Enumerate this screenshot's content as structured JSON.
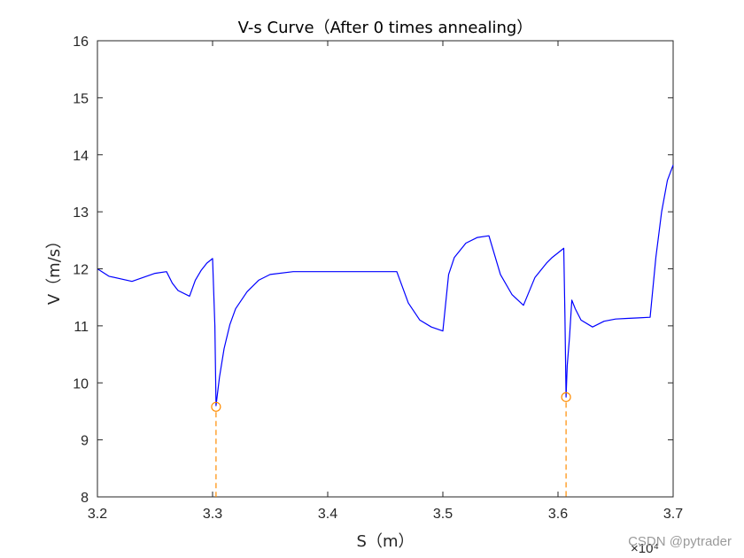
{
  "chart_data": {
    "type": "line",
    "title": "V-s Curve（After 0 times annealing）",
    "xlabel": "S（m）",
    "ylabel": "V（m/s）",
    "xlim": [
      32000,
      37000
    ],
    "ylim": [
      8,
      16
    ],
    "x_tick_labels": [
      "3.2",
      "3.3",
      "3.4",
      "3.5",
      "3.6",
      "3.7"
    ],
    "x_ticks": [
      32000,
      33000,
      34000,
      35000,
      36000,
      37000
    ],
    "y_ticks": [
      8,
      9,
      10,
      11,
      12,
      13,
      14,
      15,
      16
    ],
    "x_exponent_label": "×10⁴",
    "grid": false,
    "series": [
      {
        "color": "#0000ff",
        "x": [
          32000,
          32100,
          32300,
          32500,
          32600,
          32650,
          32700,
          32800,
          32850,
          32900,
          32950,
          33000,
          33020,
          33030,
          33060,
          33100,
          33150,
          33200,
          33300,
          33400,
          33500,
          33700,
          34000,
          34400,
          34600,
          34700,
          34800,
          34900,
          35000,
          35050,
          35100,
          35200,
          35300,
          35400,
          35500,
          35600,
          35700,
          35800,
          35900,
          35950,
          36000,
          36050,
          36060,
          36070,
          36080,
          36100,
          36120,
          36150,
          36200,
          36300,
          36400,
          36500,
          36600,
          36700,
          36800,
          36850,
          36900,
          36950,
          37000
        ],
        "y": [
          12.0,
          11.87,
          11.78,
          11.92,
          11.95,
          11.75,
          11.62,
          11.52,
          11.8,
          11.97,
          12.1,
          12.18,
          11.0,
          9.6,
          10.1,
          10.6,
          11.02,
          11.3,
          11.6,
          11.8,
          11.9,
          11.95,
          11.95,
          11.95,
          11.95,
          11.4,
          11.1,
          10.98,
          10.91,
          11.9,
          12.2,
          12.45,
          12.55,
          12.58,
          11.9,
          11.55,
          11.36,
          11.85,
          12.1,
          12.2,
          12.28,
          12.36,
          11.2,
          9.75,
          10.3,
          10.8,
          11.45,
          11.3,
          11.1,
          10.98,
          11.08,
          11.12,
          11.13,
          11.14,
          11.15,
          12.2,
          13.0,
          13.55,
          13.82
        ]
      }
    ],
    "markers": [
      {
        "x": 33030,
        "y": 9.58,
        "color": "#ff8c00",
        "style": "circle"
      },
      {
        "x": 36070,
        "y": 9.75,
        "color": "#ff8c00",
        "style": "circle"
      }
    ],
    "drop_lines": [
      {
        "x": 33030,
        "y": 9.58,
        "color": "#ff8c00",
        "style": "dashed"
      },
      {
        "x": 36070,
        "y": 9.75,
        "color": "#ff8c00",
        "style": "dashed"
      }
    ]
  },
  "watermark": "CSDN @pytrader"
}
